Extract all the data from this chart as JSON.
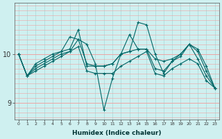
{
  "xlabel": "Humidex (Indice chaleur)",
  "ylabel": "",
  "bg_color": "#cff0f0",
  "vgrid_color": "#a8d8d8",
  "hgrid_color": "#f0a0a0",
  "line_color": "#006666",
  "xlim": [
    -0.5,
    23.5
  ],
  "ylim": [
    8.65,
    11.05
  ],
  "yticks": [
    9,
    10
  ],
  "xticks": [
    0,
    1,
    2,
    3,
    4,
    5,
    6,
    7,
    8,
    9,
    10,
    11,
    12,
    13,
    14,
    15,
    16,
    17,
    18,
    19,
    20,
    21,
    22,
    23
  ],
  "series": [
    [
      10.0,
      9.55,
      9.7,
      9.8,
      9.9,
      10.0,
      10.05,
      10.3,
      9.8,
      9.75,
      9.75,
      9.8,
      10.0,
      10.05,
      10.1,
      10.1,
      9.9,
      9.85,
      9.9,
      10.0,
      10.2,
      10.1,
      9.75,
      9.3
    ],
    [
      10.0,
      9.55,
      9.75,
      9.85,
      9.95,
      10.05,
      10.1,
      10.5,
      9.75,
      9.75,
      9.75,
      9.8,
      10.0,
      10.4,
      10.1,
      10.1,
      9.7,
      9.65,
      9.85,
      9.95,
      10.2,
      10.05,
      9.65,
      9.3
    ],
    [
      10.0,
      9.55,
      9.8,
      9.9,
      10.0,
      10.05,
      10.35,
      10.3,
      10.2,
      9.8,
      8.85,
      9.5,
      10.0,
      10.05,
      10.65,
      10.6,
      10.0,
      9.6,
      9.85,
      10.0,
      10.2,
      9.9,
      9.55,
      9.3
    ],
    [
      10.0,
      9.55,
      9.65,
      9.75,
      9.85,
      9.95,
      10.05,
      10.15,
      9.65,
      9.6,
      9.6,
      9.6,
      9.75,
      9.85,
      9.95,
      10.05,
      9.6,
      9.55,
      9.7,
      9.8,
      9.9,
      9.8,
      9.45,
      9.3
    ]
  ]
}
